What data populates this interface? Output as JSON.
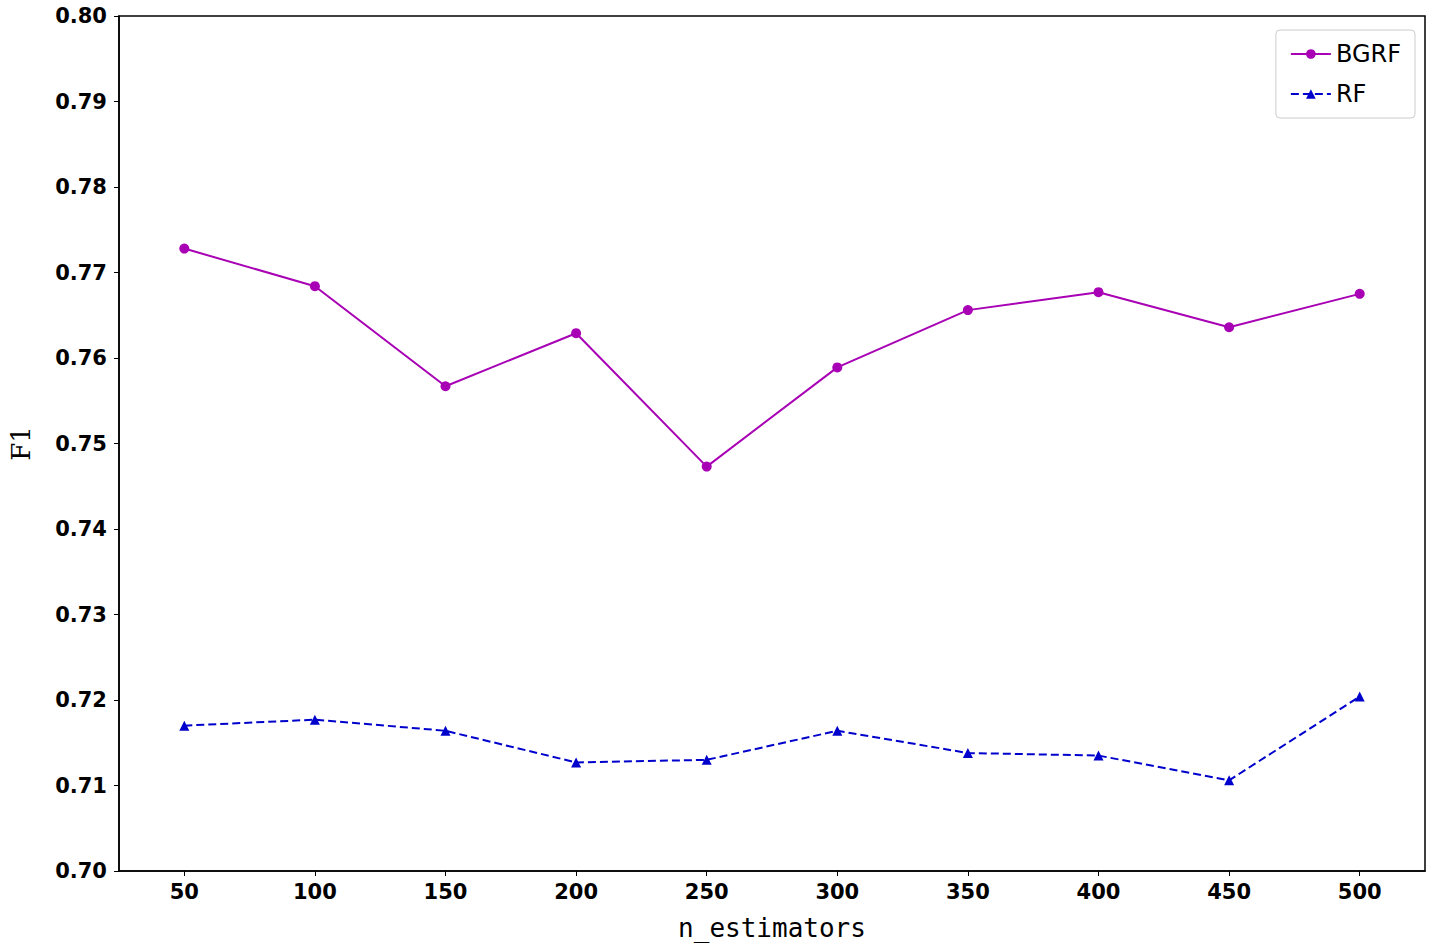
{
  "chart_data": {
    "type": "line",
    "x_label": "n_estimators",
    "y_label": "F1",
    "categories": [
      "50",
      "100",
      "150",
      "200",
      "250",
      "300",
      "350",
      "400",
      "450",
      "500"
    ],
    "series": [
      {
        "name": "BGRF",
        "color": "#a800b4",
        "marker": "circle",
        "line_style": "solid",
        "values": [
          0.7728,
          0.7684,
          0.7567,
          0.7629,
          0.7473,
          0.7589,
          0.7656,
          0.7677,
          0.7636,
          0.7675
        ]
      },
      {
        "name": "RF",
        "color": "#0000cc",
        "marker": "triangle",
        "line_style": "dashed",
        "values": [
          0.717,
          0.7177,
          0.7164,
          0.7127,
          0.713,
          0.7164,
          0.7138,
          0.7135,
          0.7106,
          0.7204
        ]
      }
    ],
    "ylim": [
      0.7,
      0.8
    ],
    "yticks": [
      {
        "value": 0.7,
        "label": "0.70"
      },
      0.71,
      0.72,
      0.73,
      0.74,
      0.75,
      0.76,
      0.77,
      0.78,
      0.79,
      {
        "value": 0.8,
        "label": "0.80"
      }
    ],
    "grid": false,
    "legend": "upper right"
  }
}
